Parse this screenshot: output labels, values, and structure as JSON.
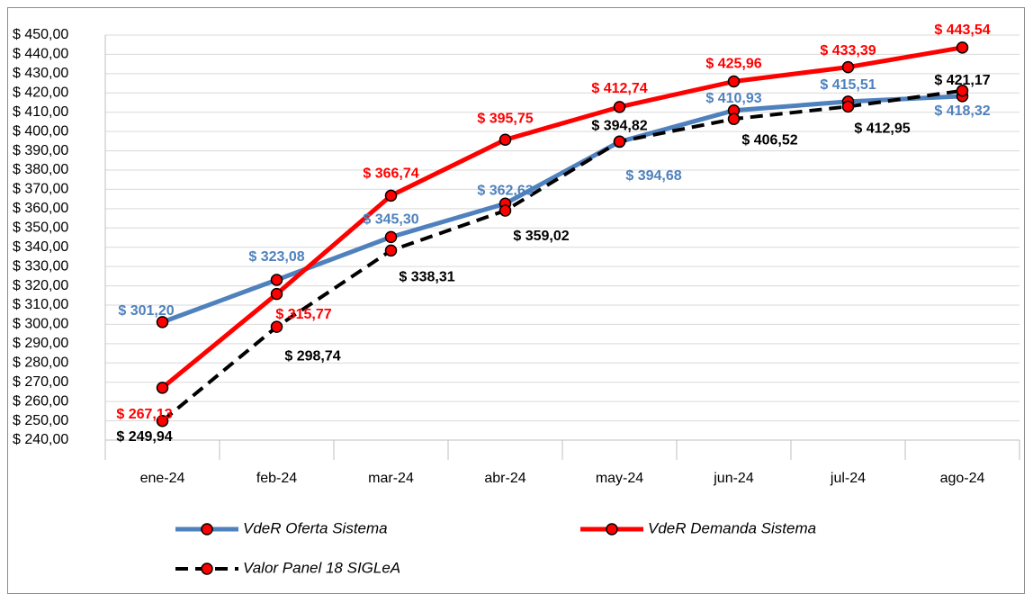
{
  "chart_data": {
    "type": "line",
    "categories": [
      "ene-24",
      "feb-24",
      "mar-24",
      "abr-24",
      "may-24",
      "jun-24",
      "jul-24",
      "ago-24"
    ],
    "series": [
      {
        "name": "VdeR Oferta Sistema",
        "color": "#4f81bd",
        "dash": false,
        "values": [
          301.2,
          323.08,
          345.3,
          362.63,
          394.68,
          410.93,
          415.51,
          418.32
        ],
        "value_labels": [
          "$ 301,20",
          "$ 323,08",
          "$ 345,30",
          "$ 362,63",
          "$ 394,68",
          "$ 410,93",
          "$ 415,51",
          "$ 418,32"
        ]
      },
      {
        "name": "VdeR Demanda Sistema",
        "color": "#ff0000",
        "dash": false,
        "values": [
          267.13,
          315.77,
          366.74,
          395.75,
          412.74,
          425.96,
          433.39,
          443.54
        ],
        "value_labels": [
          "$ 267,13",
          "$ 315,77",
          "$ 366,74",
          "$ 395,75",
          "$ 412,74",
          "$ 425,96",
          "$ 433,39",
          "$ 443,54"
        ]
      },
      {
        "name": "Valor Panel 18 SIGLeA",
        "color": "#000000",
        "dash": true,
        "values": [
          249.94,
          298.74,
          338.31,
          359.02,
          394.82,
          406.52,
          412.95,
          421.17
        ],
        "value_labels": [
          "$ 249,94",
          "$ 298,74",
          "$ 338,31",
          "$ 359,02",
          "$ 394,82",
          "$ 406,52",
          "$ 412,95",
          "$ 421,17"
        ]
      }
    ],
    "marker_color": "#ff0000",
    "ylim": [
      240,
      450
    ],
    "yticks": [
      {
        "value": 240,
        "label": "$ 240,00"
      },
      {
        "value": 250,
        "label": "$ 250,00"
      },
      {
        "value": 260,
        "label": "$ 260,00"
      },
      {
        "value": 270,
        "label": "$ 270,00"
      },
      {
        "value": 280,
        "label": "$ 280,00"
      },
      {
        "value": 290,
        "label": "$ 290,00"
      },
      {
        "value": 300,
        "label": "$ 300,00"
      },
      {
        "value": 310,
        "label": "$ 310,00"
      },
      {
        "value": 320,
        "label": "$ 320,00"
      },
      {
        "value": 330,
        "label": "$ 330,00"
      },
      {
        "value": 340,
        "label": "$ 340,00"
      },
      {
        "value": 350,
        "label": "$ 350,00"
      },
      {
        "value": 360,
        "label": "$ 360,00"
      },
      {
        "value": 370,
        "label": "$ 370,00"
      },
      {
        "value": 380,
        "label": "$ 380,00"
      },
      {
        "value": 390,
        "label": "$ 390,00"
      },
      {
        "value": 400,
        "label": "$ 400,00"
      },
      {
        "value": 410,
        "label": "$ 410,00"
      },
      {
        "value": 420,
        "label": "$ 420,00"
      },
      {
        "value": 430,
        "label": "$ 430,00"
      },
      {
        "value": 440,
        "label": "$ 440,00"
      },
      {
        "value": 450,
        "label": "$ 450,00"
      }
    ],
    "grid": true
  }
}
